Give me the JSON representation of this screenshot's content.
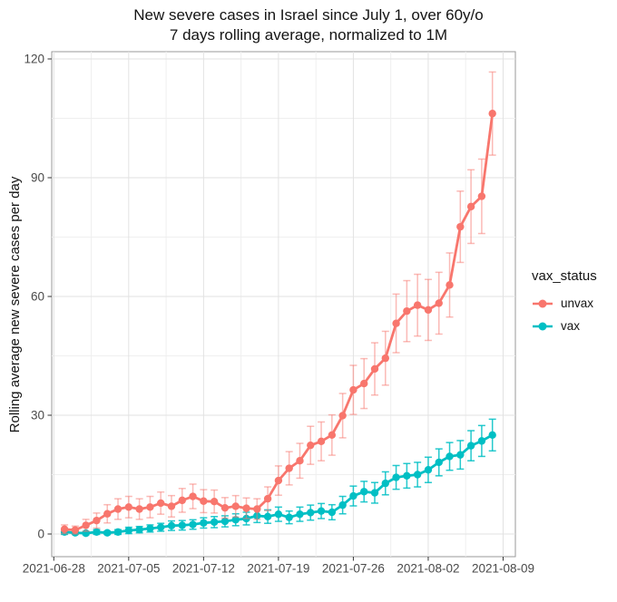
{
  "title": {
    "line1": "New severe cases in Israel since July 1, over 60y/o",
    "line2": "7 days rolling average, normalized to 1M"
  },
  "y_axis_title": "Rolling average new severe cases per day",
  "legend": {
    "title": "vax_status",
    "items": [
      {
        "label": "unvax",
        "color": "#f8766d"
      },
      {
        "label": "vax",
        "color": "#00bfc4"
      }
    ]
  },
  "colors": {
    "panel_border": "#9a9a9a",
    "grid_major": "#e2e2e2",
    "grid_minor": "#efefef",
    "tick_mark": "#333333",
    "tick_text": "#4a4a4a"
  },
  "chart_data": {
    "type": "line",
    "title": "New severe cases in Israel since July 1, over 60y/o — 7 days rolling average, normalized to 1M",
    "xlabel": "",
    "ylabel": "Rolling average new severe cases per day",
    "ylim": [
      0,
      120
    ],
    "y_ticks": [
      0,
      30,
      60,
      90,
      120
    ],
    "y_minor_ticks": [
      15,
      45,
      75,
      105
    ],
    "x_ticks": [
      "2021-06-28",
      "2021-07-05",
      "2021-07-12",
      "2021-07-19",
      "2021-07-26",
      "2021-08-02",
      "2021-08-09"
    ],
    "x_minor_offsets_days": [
      3.5,
      10.5,
      17.5,
      24.5,
      31.5,
      38.5
    ],
    "grid": true,
    "error_bars": true,
    "legend_position": "right",
    "x": [
      "2021-06-29",
      "2021-06-30",
      "2021-07-01",
      "2021-07-02",
      "2021-07-03",
      "2021-07-04",
      "2021-07-05",
      "2021-07-06",
      "2021-07-07",
      "2021-07-08",
      "2021-07-09",
      "2021-07-10",
      "2021-07-11",
      "2021-07-12",
      "2021-07-13",
      "2021-07-14",
      "2021-07-15",
      "2021-07-16",
      "2021-07-17",
      "2021-07-18",
      "2021-07-19",
      "2021-07-20",
      "2021-07-21",
      "2021-07-22",
      "2021-07-23",
      "2021-07-24",
      "2021-07-25",
      "2021-07-26",
      "2021-07-27",
      "2021-07-28",
      "2021-07-29",
      "2021-07-30",
      "2021-07-31",
      "2021-08-01",
      "2021-08-02",
      "2021-08-03",
      "2021-08-04",
      "2021-08-05",
      "2021-08-06",
      "2021-08-07",
      "2021-08-08"
    ],
    "series": [
      {
        "name": "unvax",
        "color": "#f8766d",
        "error_opacity": 0.5,
        "values": [
          1.2,
          1.0,
          2.2,
          3.4,
          5.1,
          6.3,
          6.8,
          6.3,
          6.8,
          7.8,
          7.0,
          8.5,
          9.5,
          8.3,
          8.2,
          6.6,
          7.0,
          6.5,
          6.3,
          8.9,
          13.5,
          16.6,
          18.5,
          22.4,
          23.4,
          25.0,
          29.9,
          36.4,
          38.0,
          41.7,
          44.4,
          53.2,
          56.3,
          57.8,
          56.6,
          58.3,
          62.9,
          77.6,
          82.7,
          85.3,
          106.2
        ],
        "errors": [
          1.1,
          1.0,
          1.5,
          1.9,
          2.3,
          2.6,
          2.7,
          2.6,
          2.7,
          2.8,
          2.7,
          3.0,
          3.1,
          2.9,
          2.9,
          2.6,
          2.7,
          2.6,
          2.6,
          3.0,
          3.7,
          4.2,
          4.4,
          4.8,
          4.9,
          5.1,
          5.6,
          6.2,
          6.3,
          6.6,
          6.8,
          7.4,
          7.7,
          7.8,
          7.7,
          7.8,
          8.1,
          9.0,
          9.3,
          9.4,
          10.5
        ]
      },
      {
        "name": "vax",
        "color": "#00bfc4",
        "error_opacity": 0.85,
        "values": [
          0.5,
          0.3,
          0.2,
          0.5,
          0.3,
          0.5,
          0.9,
          1.1,
          1.4,
          1.7,
          2.1,
          2.2,
          2.4,
          2.8,
          3.0,
          3.2,
          3.6,
          3.9,
          4.6,
          4.4,
          5.0,
          4.2,
          5.0,
          5.4,
          5.8,
          5.5,
          7.3,
          9.6,
          10.7,
          10.4,
          12.8,
          14.3,
          14.7,
          15.0,
          16.2,
          18.1,
          19.6,
          20.0,
          22.3,
          23.5,
          25.0
        ],
        "errors": [
          0.6,
          0.4,
          0.4,
          0.6,
          0.4,
          0.6,
          0.8,
          0.8,
          0.9,
          1.0,
          1.2,
          1.2,
          1.2,
          1.3,
          1.4,
          1.4,
          1.5,
          1.6,
          1.7,
          1.7,
          1.8,
          1.6,
          1.8,
          1.9,
          1.9,
          1.9,
          2.2,
          2.5,
          2.6,
          2.6,
          2.9,
          3.0,
          3.1,
          3.1,
          3.2,
          3.4,
          3.5,
          3.6,
          3.8,
          3.9,
          4.0
        ]
      }
    ]
  }
}
